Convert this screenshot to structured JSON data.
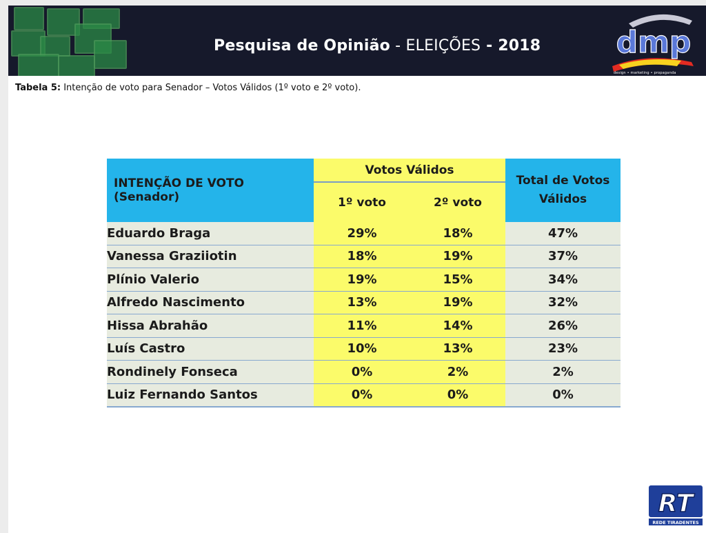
{
  "header": {
    "title_bold1": "Pesquisa de Opinião",
    "title_sep1": " - ",
    "title_thin": "ELEIÇÕES",
    "title_sep2": " - ",
    "title_year": "2018",
    "logo_text": "dmp",
    "logo_sub": "design • marketing • propaganda"
  },
  "caption": {
    "label": "Tabela 5:",
    "text": " Intenção de voto para Senador – Votos Válidos  (1º voto e 2º voto)."
  },
  "table": {
    "head_first": "INTENÇÃO DE VOTO (Senador)",
    "head_group": "Votos Válidos",
    "head_v1": "1º voto",
    "head_v2": "2º voto",
    "head_total": "Total de Votos Válidos",
    "rows": [
      {
        "name": "Eduardo Braga",
        "v1": "29%",
        "v2": "18%",
        "total": "47%"
      },
      {
        "name": "Vanessa Graziiotin",
        "v1": "18%",
        "v2": "19%",
        "total": "37%"
      },
      {
        "name": "Plínio Valerio",
        "v1": "19%",
        "v2": "15%",
        "total": "34%"
      },
      {
        "name": "Alfredo Nascimento",
        "v1": "13%",
        "v2": "19%",
        "total": "32%"
      },
      {
        "name": "Hissa Abrahão",
        "v1": "11%",
        "v2": "14%",
        "total": "26%"
      },
      {
        "name": "Luís Castro",
        "v1": "10%",
        "v2": "13%",
        "total": "23%"
      },
      {
        "name": "Rondinely Fonseca",
        "v1": "0%",
        "v2": "2%",
        "total": "2%"
      },
      {
        "name": "Luiz Fernando Santos",
        "v1": "0%",
        "v2": "0%",
        "total": "0%"
      }
    ]
  },
  "watermark": {
    "text": "RT",
    "sub": "REDE TIRADENTES"
  },
  "colors": {
    "header_blue": "#24b4ea",
    "votes_yellow": "#fbfb6a",
    "row_gray": "#e7ebdf",
    "banner_bg": "#16192b"
  }
}
